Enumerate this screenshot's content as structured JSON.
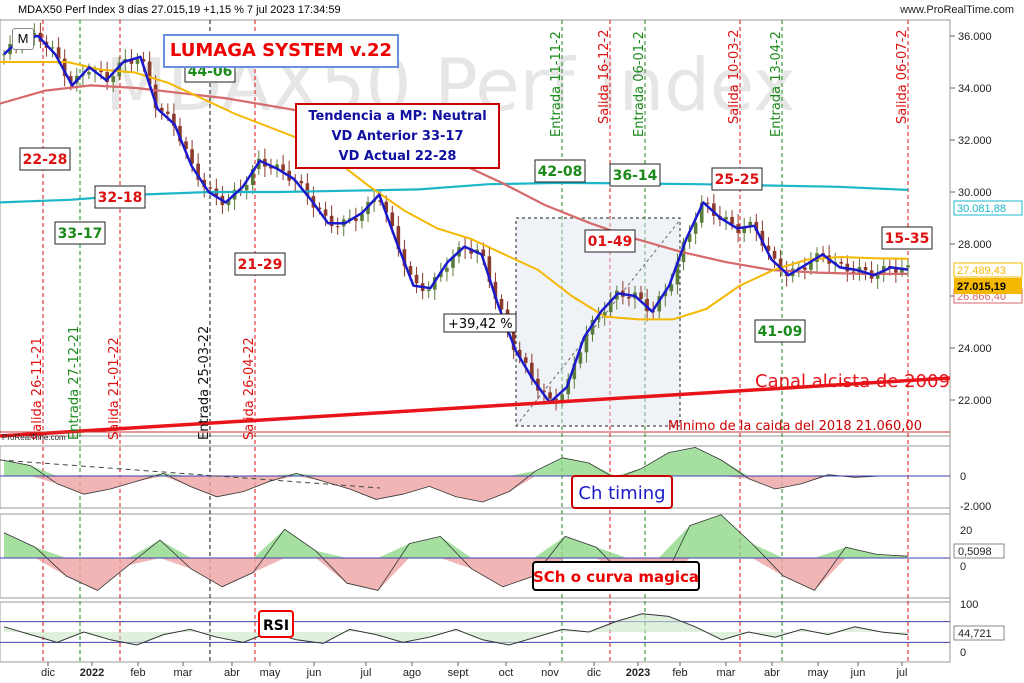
{
  "header": {
    "title": "MDAX50 Perf Index 3 días 27.015,19 +1,15 % 7 jul 2023 17:34:59",
    "url": "www.ProRealTime.com",
    "m_button": "M"
  },
  "watermark": "MDAX50 Perf Index",
  "system_title": "LUMAGA SYSTEM v.22",
  "trend_box": [
    "Tendencia a MP: Neutral",
    "VD Anterior 33-17",
    "VD Actual 22-28"
  ],
  "colors": {
    "price": "#1a1acc",
    "ma_short": "#f5b800",
    "ma_mid": "#d66a6a",
    "ma_long": "#1bb7c9",
    "channel": "#e8141a",
    "buy": "#1a8a1a",
    "sell": "#d11",
    "bull_candle": "#5a7d3a",
    "bear_candle": "#8b3a2b"
  },
  "chart_data": [
    {
      "type": "candlestick",
      "panel": "price",
      "y_ticks": [
        "36.000",
        "34.000",
        "32.000",
        "30.000",
        "28.000",
        "26.000",
        "24.000",
        "22.000"
      ],
      "ylim": [
        21000,
        37000
      ],
      "x_labels": [
        "dic",
        "2022",
        "feb",
        "mar",
        "abr",
        "may",
        "jun",
        "jul",
        "ago",
        "sept",
        "oct",
        "nov",
        "dic",
        "2023",
        "feb",
        "mar",
        "abr",
        "may",
        "jun",
        "jul"
      ],
      "price_series": [
        35300,
        35900,
        36000,
        35300,
        34100,
        34800,
        34300,
        35000,
        35200,
        33200,
        32600,
        31000,
        30000,
        29600,
        30200,
        31200,
        30900,
        30500,
        29700,
        28800,
        28800,
        29200,
        29900,
        28100,
        26400,
        26300,
        27300,
        27900,
        27600,
        25600,
        23900,
        22800,
        21900,
        22500,
        24400,
        25400,
        26100,
        26000,
        25400,
        26400,
        28200,
        29600,
        29000,
        28600,
        28700,
        27400,
        26800,
        27200,
        27600,
        27100,
        27000,
        26800,
        27100,
        27015
      ],
      "ma_short": [
        35000,
        35000,
        35000,
        34700,
        34600,
        34200,
        33600,
        33000,
        32500,
        32000,
        31200,
        30200,
        29300,
        28600,
        28200,
        27600,
        27000,
        26000,
        25200,
        25100,
        25100,
        25500,
        26400,
        27000,
        27400,
        27500,
        27450,
        27430
      ],
      "ma_mid": [
        33400,
        33900,
        34100,
        34000,
        33800,
        33600,
        33300,
        33000,
        32500,
        31900,
        31200,
        30400,
        29500,
        28800,
        28200,
        27700,
        27300,
        27000,
        26900,
        26850,
        26850
      ],
      "ma_long": [
        29600,
        29700,
        29900,
        30000,
        30000,
        30050,
        30100,
        30300,
        30350,
        30330,
        30300,
        30250,
        30200,
        30082
      ],
      "last_price": "27.015,19",
      "ma_labels": [
        "30.081,88",
        "27.489,43",
        "26.866,40"
      ],
      "vd_labels": [
        {
          "text": "22-28",
          "color": "sell"
        },
        {
          "text": "32-18",
          "color": "sell"
        },
        {
          "text": "33-17",
          "color": "buy"
        },
        {
          "text": "44-06",
          "color": "buy"
        },
        {
          "text": "21-29",
          "color": "sell"
        },
        {
          "text": "42-08",
          "color": "buy"
        },
        {
          "text": "01-49",
          "color": "sell"
        },
        {
          "text": "36-14",
          "color": "buy"
        },
        {
          "text": "25-25",
          "color": "sell"
        },
        {
          "text": "41-09",
          "color": "buy"
        },
        {
          "text": "15-35",
          "color": "sell"
        }
      ],
      "signals": [
        {
          "text": "Salida 26-11-21",
          "kind": "sell"
        },
        {
          "text": "Entrada 27-12-21",
          "kind": "buy"
        },
        {
          "text": "Salida 21-01-22",
          "kind": "sell"
        },
        {
          "text": "Entrada 25-03-22",
          "kind": "neutral"
        },
        {
          "text": "Salida 26-04-22",
          "kind": "sell"
        },
        {
          "text": "Entrada 11-11-2",
          "kind": "buy"
        },
        {
          "text": "Salida 16-12-2",
          "kind": "sell"
        },
        {
          "text": "Entrada 06-01-2",
          "kind": "buy"
        },
        {
          "text": "Salida 10-03-2",
          "kind": "sell"
        },
        {
          "text": "Entrada 13-04-2",
          "kind": "buy"
        },
        {
          "text": "Salida 06-07-2",
          "kind": "sell"
        }
      ],
      "annotations": {
        "gain": "+39,42 %",
        "channel": "Canal alcista de 2009",
        "minimum": "Minimo de la caida del 2018  21.060,00",
        "source": "ProRealTime.com"
      }
    },
    {
      "type": "area",
      "panel": "Ch timing",
      "label": "Ch timing",
      "y_ticks": [
        "0",
        "-2.000"
      ],
      "values": [
        0.6,
        0.4,
        -0.3,
        -0.7,
        -0.5,
        -0.2,
        0.1,
        -0.4,
        -0.8,
        -0.6,
        -0.2,
        0.1,
        -0.2,
        -0.5,
        -0.9,
        -0.7,
        -0.4,
        -0.8,
        -1.0,
        -0.6,
        0.2,
        0.7,
        0.5,
        -0.1,
        0.3,
        0.9,
        1.1,
        0.6,
        -0.1,
        -0.5,
        -0.3,
        0.05,
        -0.05,
        0.0,
        0.0
      ]
    },
    {
      "type": "area",
      "panel": "SCh o curva magica",
      "label": "SCh o curva magica",
      "y_ticks": [
        "20",
        "0,5098",
        "0"
      ],
      "values": [
        0.7,
        0.3,
        -0.5,
        -0.9,
        -0.2,
        0.5,
        -0.3,
        -0.8,
        -0.4,
        0.8,
        0.2,
        -0.7,
        -0.9,
        0.4,
        0.6,
        -0.3,
        -0.8,
        -0.5,
        0.6,
        0.3,
        -0.6,
        -0.9,
        0.9,
        1.2,
        0.4,
        -0.5,
        -0.9,
        0.3,
        0.1,
        0.05
      ]
    },
    {
      "type": "line",
      "panel": "RSI",
      "label": "RSI",
      "y_ticks": [
        "100",
        "44,721",
        "0"
      ],
      "values": [
        60,
        45,
        30,
        50,
        35,
        25,
        45,
        55,
        40,
        30,
        50,
        35,
        28,
        55,
        45,
        30,
        40,
        55,
        35,
        25,
        40,
        55,
        50,
        70,
        85,
        80,
        60,
        35,
        50,
        40,
        55,
        45,
        60,
        50,
        45
      ]
    }
  ]
}
